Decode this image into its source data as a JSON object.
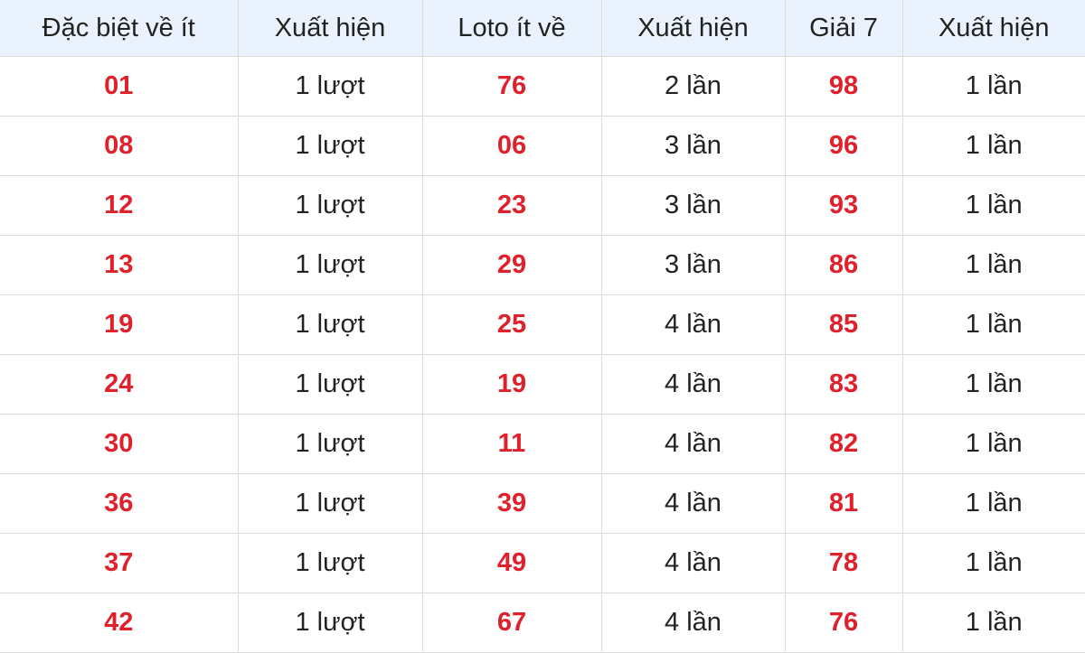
{
  "headers": [
    "Đặc biệt về ít",
    "Xuất hiện",
    "Loto ít về",
    "Xuất hiện",
    "Giải 7",
    "Xuất hiện"
  ],
  "rows": [
    [
      "01",
      "1 lượt",
      "76",
      "2 lần",
      "98",
      "1 lần"
    ],
    [
      "08",
      "1 lượt",
      "06",
      "3 lần",
      "96",
      "1 lần"
    ],
    [
      "12",
      "1 lượt",
      "23",
      "3 lần",
      "93",
      "1 lần"
    ],
    [
      "13",
      "1 lượt",
      "29",
      "3 lần",
      "86",
      "1 lần"
    ],
    [
      "19",
      "1 lượt",
      "25",
      "4 lần",
      "85",
      "1 lần"
    ],
    [
      "24",
      "1 lượt",
      "19",
      "4 lần",
      "83",
      "1 lần"
    ],
    [
      "30",
      "1 lượt",
      "11",
      "4 lần",
      "82",
      "1 lần"
    ],
    [
      "36",
      "1 lượt",
      "39",
      "4 lần",
      "81",
      "1 lần"
    ],
    [
      "37",
      "1 lượt",
      "49",
      "4 lần",
      "78",
      "1 lần"
    ],
    [
      "42",
      "1 lượt",
      "67",
      "4 lần",
      "76",
      "1 lần"
    ]
  ],
  "colors": {
    "number": "#e0202a",
    "header_bg": "#eaf3fd"
  }
}
